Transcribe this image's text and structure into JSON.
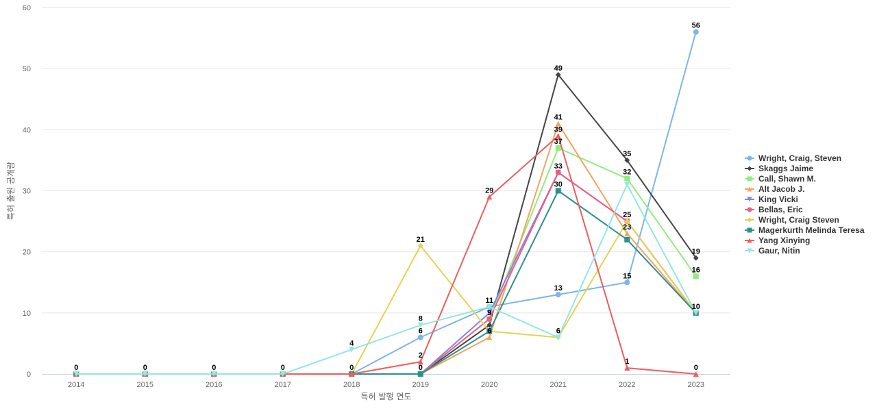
{
  "chart_data": {
    "type": "line",
    "xlabel": "특허 발행 연도",
    "ylabel": "특허 출원 공개량",
    "ylim": [
      0,
      60
    ],
    "yticks": [
      0,
      10,
      20,
      30,
      40,
      50,
      60
    ],
    "grid": "horizontal",
    "legend_position": "right",
    "categories": [
      "2014",
      "2015",
      "2016",
      "2017",
      "2018",
      "2019",
      "2020",
      "2021",
      "2022",
      "2023"
    ],
    "series": [
      {
        "name": "Wright, Craig, Steven",
        "color": "#7cb5ec",
        "marker": "circle",
        "values": [
          0,
          0,
          0,
          0,
          0,
          6,
          11,
          13,
          15,
          56
        ]
      },
      {
        "name": "Skaggs Jaime",
        "color": "#434348",
        "marker": "diamond",
        "values": [
          0,
          0,
          0,
          0,
          0,
          0,
          8,
          49,
          35,
          19
        ]
      },
      {
        "name": "Call, Shawn M.",
        "color": "#90ed7d",
        "marker": "square",
        "values": [
          0,
          0,
          0,
          0,
          0,
          0,
          9,
          37,
          32,
          16
        ]
      },
      {
        "name": "Alt Jacob J.",
        "color": "#f7a35c",
        "marker": "triangle",
        "values": [
          0,
          0,
          0,
          0,
          0,
          0,
          6,
          41,
          23,
          10
        ]
      },
      {
        "name": "King Vicki",
        "color": "#8085e9",
        "marker": "triangle-down",
        "values": [
          0,
          0,
          0,
          0,
          0,
          0,
          10,
          33,
          25,
          10
        ]
      },
      {
        "name": "Bellas, Eric",
        "color": "#f15c80",
        "marker": "circle",
        "values": [
          0,
          0,
          0,
          0,
          0,
          0,
          9,
          33,
          25,
          10
        ]
      },
      {
        "name": "Wright, Craig Steven",
        "color": "#e4d354",
        "marker": "diamond",
        "values": [
          0,
          0,
          0,
          0,
          0,
          21,
          7,
          6,
          25,
          10
        ]
      },
      {
        "name": "Magerkurth Melinda Teresa",
        "color": "#2b908f",
        "marker": "square",
        "values": [
          0,
          0,
          0,
          0,
          0,
          0,
          7,
          30,
          22,
          10
        ]
      },
      {
        "name": "Yang Xinying",
        "color": "#f45b5b",
        "marker": "triangle",
        "values": [
          0,
          0,
          0,
          0,
          0,
          2,
          29,
          39,
          1,
          0
        ]
      },
      {
        "name": "Gaur, Nitin",
        "color": "#91e8e1",
        "marker": "triangle-down",
        "values": [
          0,
          0,
          0,
          0,
          4,
          8,
          11,
          6,
          31,
          10
        ]
      }
    ],
    "data_labels": [
      {
        "x": "2014",
        "text": "0"
      },
      {
        "x": "2015",
        "text": "0"
      },
      {
        "x": "2016",
        "text": "0"
      },
      {
        "x": "2017",
        "text": "0"
      },
      {
        "x": "2018",
        "text": "0"
      },
      {
        "x": "2018",
        "y": 4,
        "text": "4"
      },
      {
        "x": "2019",
        "y": 21,
        "text": "21"
      },
      {
        "x": "2019",
        "y": 8,
        "text": "8"
      },
      {
        "x": "2019",
        "y": 6,
        "text": "6"
      },
      {
        "x": "2019",
        "y": 2,
        "text": "2"
      },
      {
        "x": "2019",
        "y": 0,
        "text": "0"
      },
      {
        "x": "2020",
        "y": 29,
        "text": "29"
      },
      {
        "x": "2020",
        "y": 11,
        "text": "11"
      },
      {
        "x": "2020",
        "y": 9,
        "text": "9"
      },
      {
        "x": "2020",
        "y": 6,
        "text": "6"
      },
      {
        "x": "2021",
        "y": 49,
        "text": "49"
      },
      {
        "x": "2021",
        "y": 41,
        "text": "41"
      },
      {
        "x": "2021",
        "y": 39,
        "text": "39"
      },
      {
        "x": "2021",
        "y": 37,
        "text": "37"
      },
      {
        "x": "2021",
        "y": 33,
        "text": "33"
      },
      {
        "x": "2021",
        "y": 30,
        "text": "30"
      },
      {
        "x": "2021",
        "y": 13,
        "text": "13"
      },
      {
        "x": "2021",
        "y": 6,
        "text": "6"
      },
      {
        "x": "2022",
        "y": 35,
        "text": "35"
      },
      {
        "x": "2022",
        "y": 32,
        "text": "32"
      },
      {
        "x": "2022",
        "y": 25,
        "text": "25"
      },
      {
        "x": "2022",
        "y": 23,
        "text": "23"
      },
      {
        "x": "2022",
        "y": 15,
        "text": "15"
      },
      {
        "x": "2022",
        "y": 1,
        "text": "1"
      },
      {
        "x": "2023",
        "y": 56,
        "text": "56"
      },
      {
        "x": "2023",
        "y": 19,
        "text": "19"
      },
      {
        "x": "2023",
        "y": 16,
        "text": "16"
      },
      {
        "x": "2023",
        "y": 10,
        "text": "10"
      },
      {
        "x": "2023",
        "y": 0,
        "text": "0"
      }
    ]
  }
}
